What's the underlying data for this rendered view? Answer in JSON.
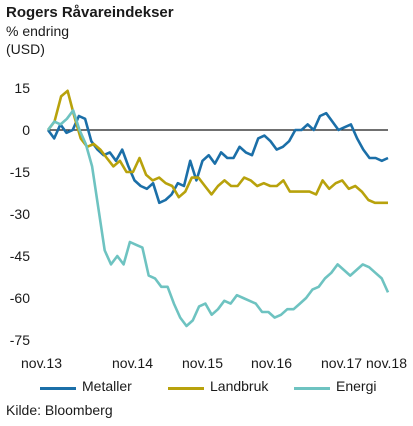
{
  "header": {
    "title": "Rogers Råvareindekser",
    "subtitle_1": "% endring",
    "subtitle_2": "(USD)"
  },
  "source": "Kilde: Bloomberg",
  "chart_data": {
    "type": "line",
    "title": "Rogers Råvareindekser",
    "ylabel": "% endring (USD)",
    "ylim": [
      -75,
      15
    ],
    "yticks": [
      15,
      0,
      -15,
      -30,
      -45,
      -60,
      -75
    ],
    "xlim": [
      0,
      60
    ],
    "xtick_labels": [
      "nov.13",
      "nov.14",
      "nov.15",
      "nov.16",
      "nov.17",
      "nov.18"
    ],
    "zero_line": true,
    "legend_position": "bottom",
    "series": [
      {
        "name": "Metaller",
        "color": "#1b6fa8",
        "values": [
          0,
          -3,
          2,
          -1,
          0,
          5,
          4,
          -4,
          -7,
          -9,
          -8,
          -11,
          -7,
          -13,
          -18,
          -20,
          -21,
          -19,
          -26,
          -25,
          -23,
          -19,
          -20,
          -11,
          -18,
          -11,
          -9,
          -12,
          -8,
          -10,
          -10,
          -6,
          -8,
          -9,
          -3,
          -2,
          -4,
          -7,
          -6,
          -4,
          0,
          0,
          2,
          0,
          5,
          6,
          3,
          0,
          1,
          2,
          -3,
          -7,
          -10,
          -10,
          -11,
          -10
        ]
      },
      {
        "name": "Landbruk",
        "color": "#b8a20c",
        "values": [
          0,
          3,
          12,
          14,
          5,
          -3,
          -6,
          -5,
          -7,
          -10,
          -13,
          -11,
          -15,
          -15,
          -10,
          -16,
          -18,
          -17,
          -19,
          -20,
          -24,
          -22,
          -17,
          -17,
          -20,
          -23,
          -20,
          -18,
          -20,
          -20,
          -17,
          -18,
          -20,
          -19,
          -20,
          -20,
          -18,
          -22,
          -22,
          -22,
          -22,
          -23,
          -18,
          -21,
          -19,
          -18,
          -21,
          -20,
          -22,
          -25,
          -26,
          -26,
          -26
        ]
      },
      {
        "name": "Energi",
        "color": "#6ec3c1",
        "values": [
          0,
          3,
          2,
          4,
          7,
          0,
          -5,
          -13,
          -28,
          -43,
          -48,
          -45,
          -48,
          -40,
          -41,
          -42,
          -52,
          -53,
          -56,
          -56,
          -62,
          -67,
          -70,
          -68,
          -63,
          -62,
          -66,
          -64,
          -61,
          -62,
          -59,
          -60,
          -61,
          -62,
          -65,
          -65,
          -67,
          -66,
          -64,
          -64,
          -62,
          -60,
          -57,
          -56,
          -53,
          -51,
          -48,
          -50,
          -52,
          -50,
          -48,
          -49,
          -51,
          -53,
          -58
        ]
      }
    ]
  }
}
